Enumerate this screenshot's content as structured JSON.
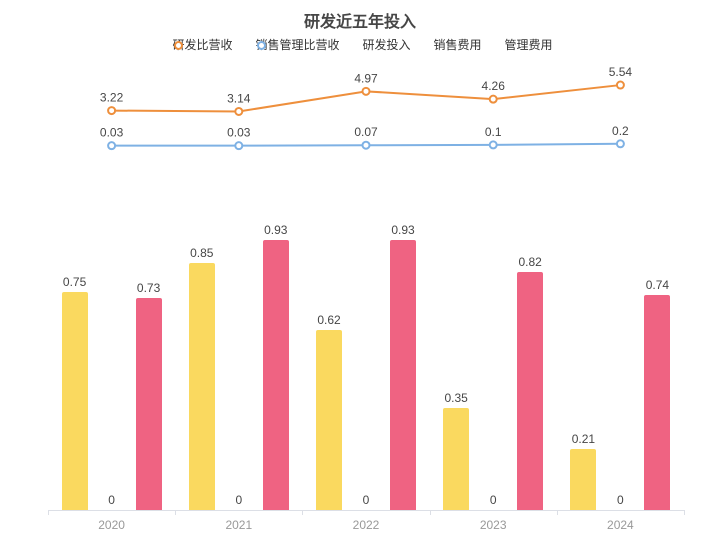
{
  "chart_data": {
    "type": "combo",
    "title": "研发近五年投入",
    "categories": [
      "2020",
      "2021",
      "2022",
      "2023",
      "2024"
    ],
    "series": [
      {
        "id": "rd-revenue-ratio",
        "name": "研发比营收",
        "type": "line",
        "color": "#EE8F3C",
        "values": [
          3.22,
          3.14,
          4.97,
          4.26,
          5.54
        ]
      },
      {
        "id": "sales-mgmt-revenue-ratio",
        "name": "销售管理比营收",
        "type": "line",
        "color": "#7EB1E4",
        "values": [
          0.03,
          0.03,
          0.07,
          0.1,
          0.2
        ]
      },
      {
        "id": "rd-investment",
        "name": "研发投入",
        "type": "bar",
        "color": "#FAD95F",
        "values": [
          0.75,
          0.85,
          0.62,
          0.35,
          0.21
        ]
      },
      {
        "id": "sales-expense",
        "name": "销售费用",
        "type": "bar",
        "color": "#4DD2CE",
        "values": [
          0,
          0,
          0,
          0,
          0
        ]
      },
      {
        "id": "mgmt-expense",
        "name": "管理费用",
        "type": "bar",
        "color": "#EF6382",
        "values": [
          0.73,
          0.93,
          0.93,
          0.82,
          0.74
        ]
      }
    ],
    "legend_position": "top",
    "value_labels": true,
    "grid": false,
    "text_color": "#464646",
    "axis_label_color": "#999999",
    "axis_line_color": "#dcdfe6"
  }
}
